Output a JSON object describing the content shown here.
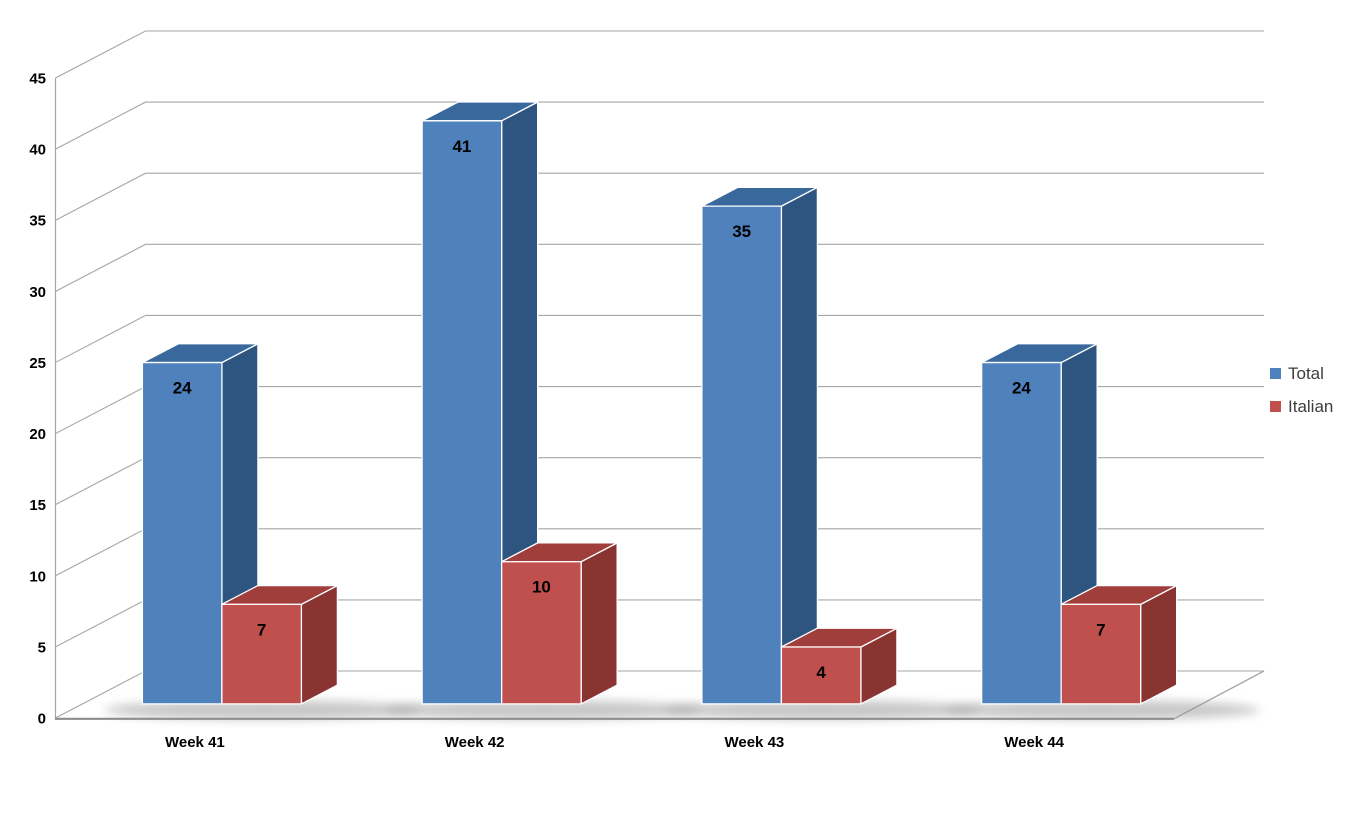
{
  "chart_data": {
    "type": "bar",
    "variant": "3d-clustered-column",
    "title": "",
    "xlabel": "",
    "ylabel": "",
    "categories": [
      "Week 41",
      "Week 42",
      "Week 43",
      "Week 44"
    ],
    "series": [
      {
        "name": "Total",
        "values": [
          24,
          41,
          35,
          24
        ],
        "color": "#4F81BD",
        "color_top": "#39689D",
        "color_side": "#2E5480"
      },
      {
        "name": "Italian",
        "values": [
          7,
          10,
          4,
          7
        ],
        "color": "#C0504D",
        "color_top": "#A03E3B",
        "color_side": "#8A3431"
      }
    ],
    "ylim": [
      0,
      45
    ],
    "ytick_step": 5,
    "yticks": [
      0,
      5,
      10,
      15,
      20,
      25,
      30,
      35,
      40,
      45
    ],
    "grid": true,
    "data_labels": true,
    "legend_position": "right",
    "gridline_color": "#A6A6A6",
    "axis_line_color": "#8C8C8C",
    "axis_text_color": "#000000",
    "data_label_color": "#000000",
    "background": "#FFFFFF"
  }
}
